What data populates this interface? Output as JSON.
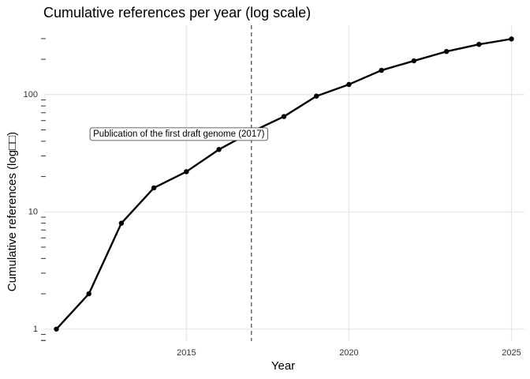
{
  "chart_data": {
    "type": "line",
    "title": "Cumulative references per year (log scale)",
    "xlabel": "Year",
    "ylabel": "Cumulative references (log□□)",
    "x_scale": "linear",
    "y_scale": "log10",
    "xlim": [
      2010.6,
      2025.4
    ],
    "ylim": [
      0.79,
      390
    ],
    "x_ticks": [
      2015,
      2020,
      2025
    ],
    "y_ticks": [
      1,
      10,
      100
    ],
    "y_tick_labels": [
      "1",
      "10",
      "100"
    ],
    "grid": true,
    "series": [
      {
        "x": [
          2011,
          2012,
          2013,
          2014,
          2015,
          2016,
          2017,
          2018,
          2019,
          2020,
          2021,
          2022,
          2023,
          2024,
          2025
        ],
        "y": [
          1,
          2,
          8,
          16,
          22,
          34,
          48,
          65,
          97,
          122,
          161,
          194,
          233,
          268,
          298
        ],
        "color": "#000000"
      }
    ],
    "vline": {
      "x": 2017,
      "style": "dashed",
      "label": "Publication of the first draft genome (2017)",
      "label_y": 46
    }
  }
}
